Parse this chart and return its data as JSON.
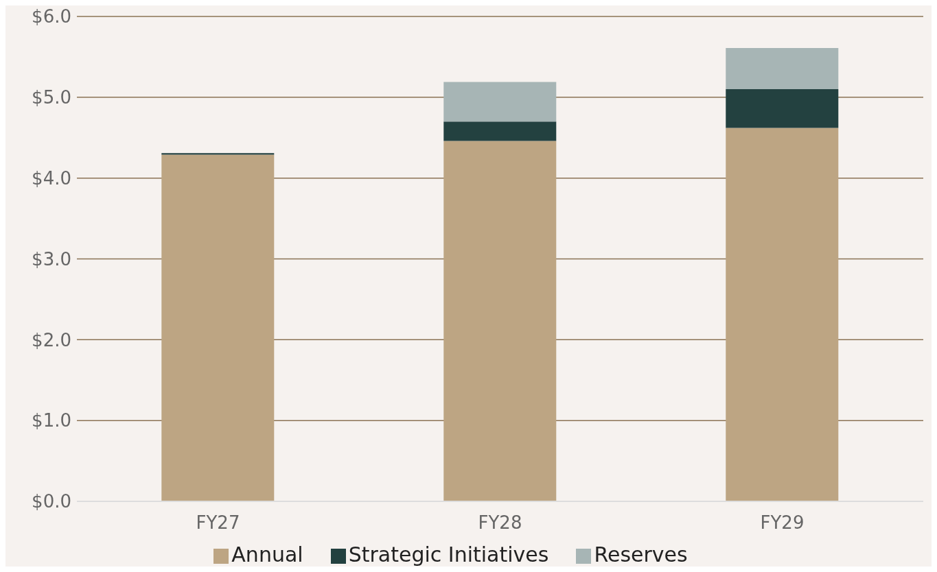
{
  "chart_data": {
    "type": "bar",
    "stacked": true,
    "categories": [
      "FY27",
      "FY28",
      "FY29"
    ],
    "series": [
      {
        "name": "Annual",
        "color": "#bda583",
        "values": [
          4.29,
          4.46,
          4.62
        ]
      },
      {
        "name": "Strategic Initiatives",
        "color": "#234140",
        "values": [
          0.02,
          0.24,
          0.48
        ]
      },
      {
        "name": "Reserves",
        "color": "#a7b5b5",
        "values": [
          null,
          0.49,
          0.51
        ]
      }
    ],
    "ylim": [
      0,
      6
    ],
    "yticks": [
      {
        "value": 0,
        "label": "$0.0"
      },
      {
        "value": 1,
        "label": "$1.0"
      },
      {
        "value": 2,
        "label": "$2.0"
      },
      {
        "value": 3,
        "label": "$3.0"
      },
      {
        "value": 4,
        "label": "$4.0"
      },
      {
        "value": 5,
        "label": "$5.0"
      },
      {
        "value": 6,
        "label": "$6.0"
      }
    ],
    "grid": "y",
    "legend": "bottom"
  }
}
